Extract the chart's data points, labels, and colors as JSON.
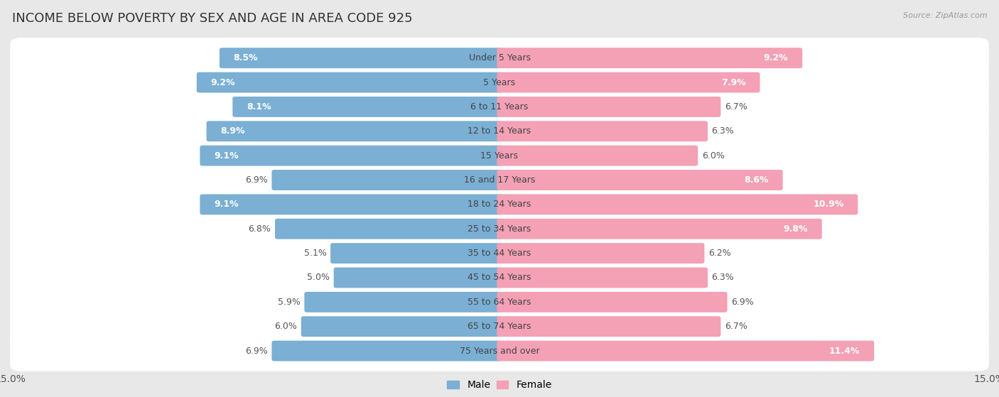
{
  "title": "INCOME BELOW POVERTY BY SEX AND AGE IN AREA CODE 925",
  "source": "Source: ZipAtlas.com",
  "categories": [
    "Under 5 Years",
    "5 Years",
    "6 to 11 Years",
    "12 to 14 Years",
    "15 Years",
    "16 and 17 Years",
    "18 to 24 Years",
    "25 to 34 Years",
    "35 to 44 Years",
    "45 to 54 Years",
    "55 to 64 Years",
    "65 to 74 Years",
    "75 Years and over"
  ],
  "male": [
    8.5,
    9.2,
    8.1,
    8.9,
    9.1,
    6.9,
    9.1,
    6.8,
    5.1,
    5.0,
    5.9,
    6.0,
    6.9
  ],
  "female": [
    9.2,
    7.9,
    6.7,
    6.3,
    6.0,
    8.6,
    10.9,
    9.8,
    6.2,
    6.3,
    6.9,
    6.7,
    11.4
  ],
  "male_color": "#7bafd4",
  "female_color": "#f4a0b5",
  "male_label": "Male",
  "female_label": "Female",
  "xlim": 15.0,
  "bg_color": "#e8e8e8",
  "bar_bg_color": "#ffffff",
  "title_fontsize": 13,
  "axis_fontsize": 10,
  "label_fontsize": 9,
  "inside_label_threshold": 7.0
}
